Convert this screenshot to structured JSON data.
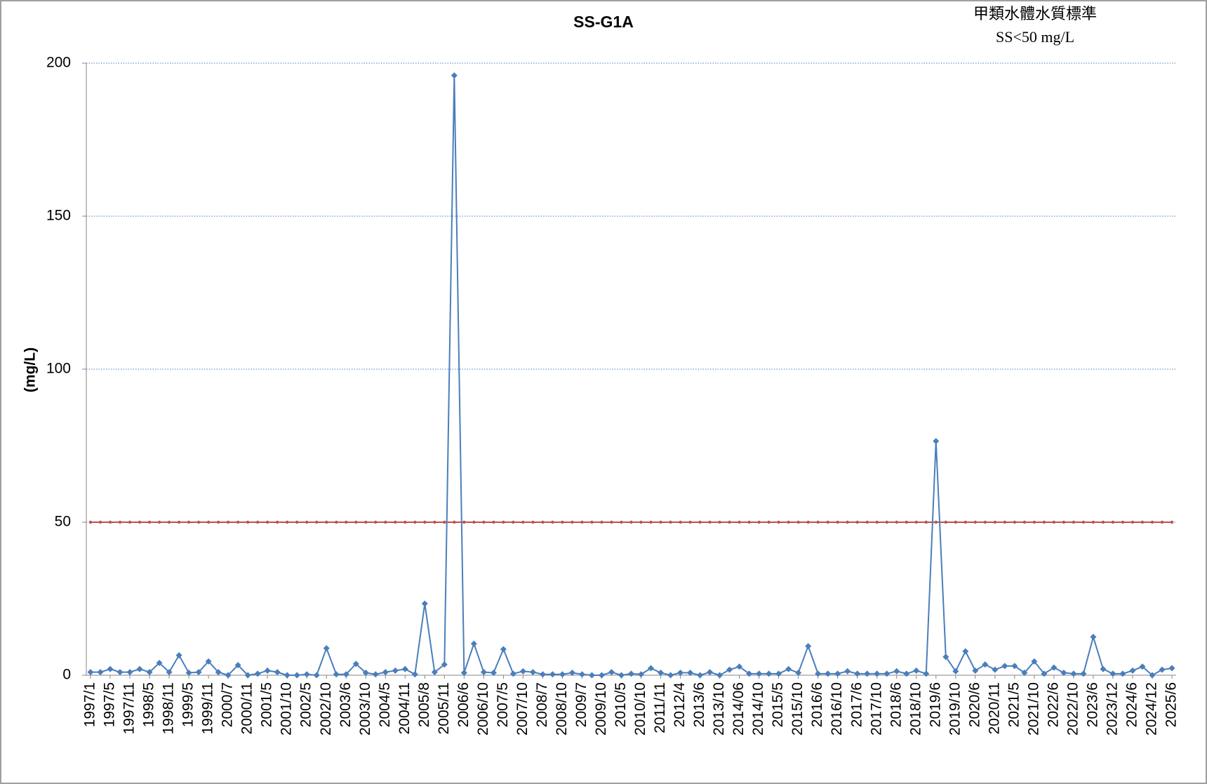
{
  "chart_data": {
    "type": "line",
    "title": "SS-G1A",
    "annotations": [
      "甲類水體水質標準",
      "SS<50 mg/L"
    ],
    "y_label": "(mg/L)",
    "categories": [
      "1997/1",
      null,
      "1997/5",
      null,
      "1997/11",
      null,
      "1998/5",
      null,
      "1998/11",
      null,
      "1999/5",
      null,
      "1999/11",
      null,
      "2000/7",
      null,
      "2000/11",
      null,
      "2001/5",
      null,
      "2001/10",
      null,
      "2002/5",
      null,
      "2002/10",
      null,
      "2003/6",
      null,
      "2003/10",
      null,
      "2004/5",
      null,
      "2004/11",
      null,
      "2005/8",
      null,
      "2005/11",
      null,
      "2006/6",
      null,
      "2006/10",
      null,
      "2007/5",
      null,
      "2007/10",
      null,
      "2008/7",
      null,
      "2008/10",
      null,
      "2009/7",
      null,
      "2009/10",
      null,
      "2010/5",
      null,
      "2010/10",
      null,
      "2011/11",
      null,
      "2012/4",
      null,
      "2013/6",
      null,
      "2013/10",
      null,
      "2014/06",
      null,
      "2014/10",
      null,
      "2015/5",
      null,
      "2015/10",
      null,
      "2016/6",
      null,
      "2016/10",
      null,
      "2017/6",
      null,
      "2017/10",
      null,
      "2018/6",
      null,
      "2018/10",
      null,
      "2019/6",
      null,
      "2019/10",
      null,
      "2020/6",
      null,
      "2020/11",
      null,
      "2021/5",
      null,
      "2021/10",
      null,
      "2022/6",
      null,
      "2022/10",
      null,
      "2023/6",
      null,
      "2023/12",
      null,
      "2024/6",
      null,
      "2024/12",
      null,
      "2025/6"
    ],
    "values": [
      1,
      1,
      2,
      1,
      1,
      2,
      1,
      4,
      1,
      6.5,
      0.8,
      1,
      4.5,
      1,
      0,
      3.3,
      0,
      0.5,
      1.5,
      1,
      0,
      0,
      0.3,
      0,
      8.8,
      0.3,
      0.3,
      3.7,
      0.8,
      0.3,
      1,
      1.5,
      2,
      0.3,
      23.4,
      1,
      3.5,
      196,
      0.8,
      10.3,
      1,
      0.8,
      8.5,
      0.5,
      1.3,
      1,
      0.3,
      0.3,
      0.3,
      0.8,
      0.3,
      0,
      0,
      1,
      0,
      0.5,
      0.3,
      2.3,
      0.8,
      0,
      0.8,
      0.8,
      0,
      1,
      0,
      1.8,
      2.8,
      0.5,
      0.5,
      0.5,
      0.5,
      2,
      0.8,
      9.5,
      0.5,
      0.5,
      0.5,
      1.3,
      0.5,
      0.5,
      0.5,
      0.5,
      1.3,
      0.5,
      1.5,
      0.5,
      76.5,
      6,
      1.3,
      7.8,
      1.5,
      3.5,
      1.8,
      3,
      3,
      0.8,
      4.5,
      0.5,
      2.5,
      0.8,
      0.5,
      0.5,
      12.5,
      2,
      0.5,
      0.5,
      1.5,
      2.8,
      0,
      1.8,
      2.3
    ],
    "color": "#4a7ebb",
    "reference_line": {
      "value": 50,
      "color": "#c0504d"
    },
    "ylim": [
      0,
      200
    ],
    "yticks": [
      0,
      50,
      100,
      150,
      200
    ],
    "grid": true
  }
}
